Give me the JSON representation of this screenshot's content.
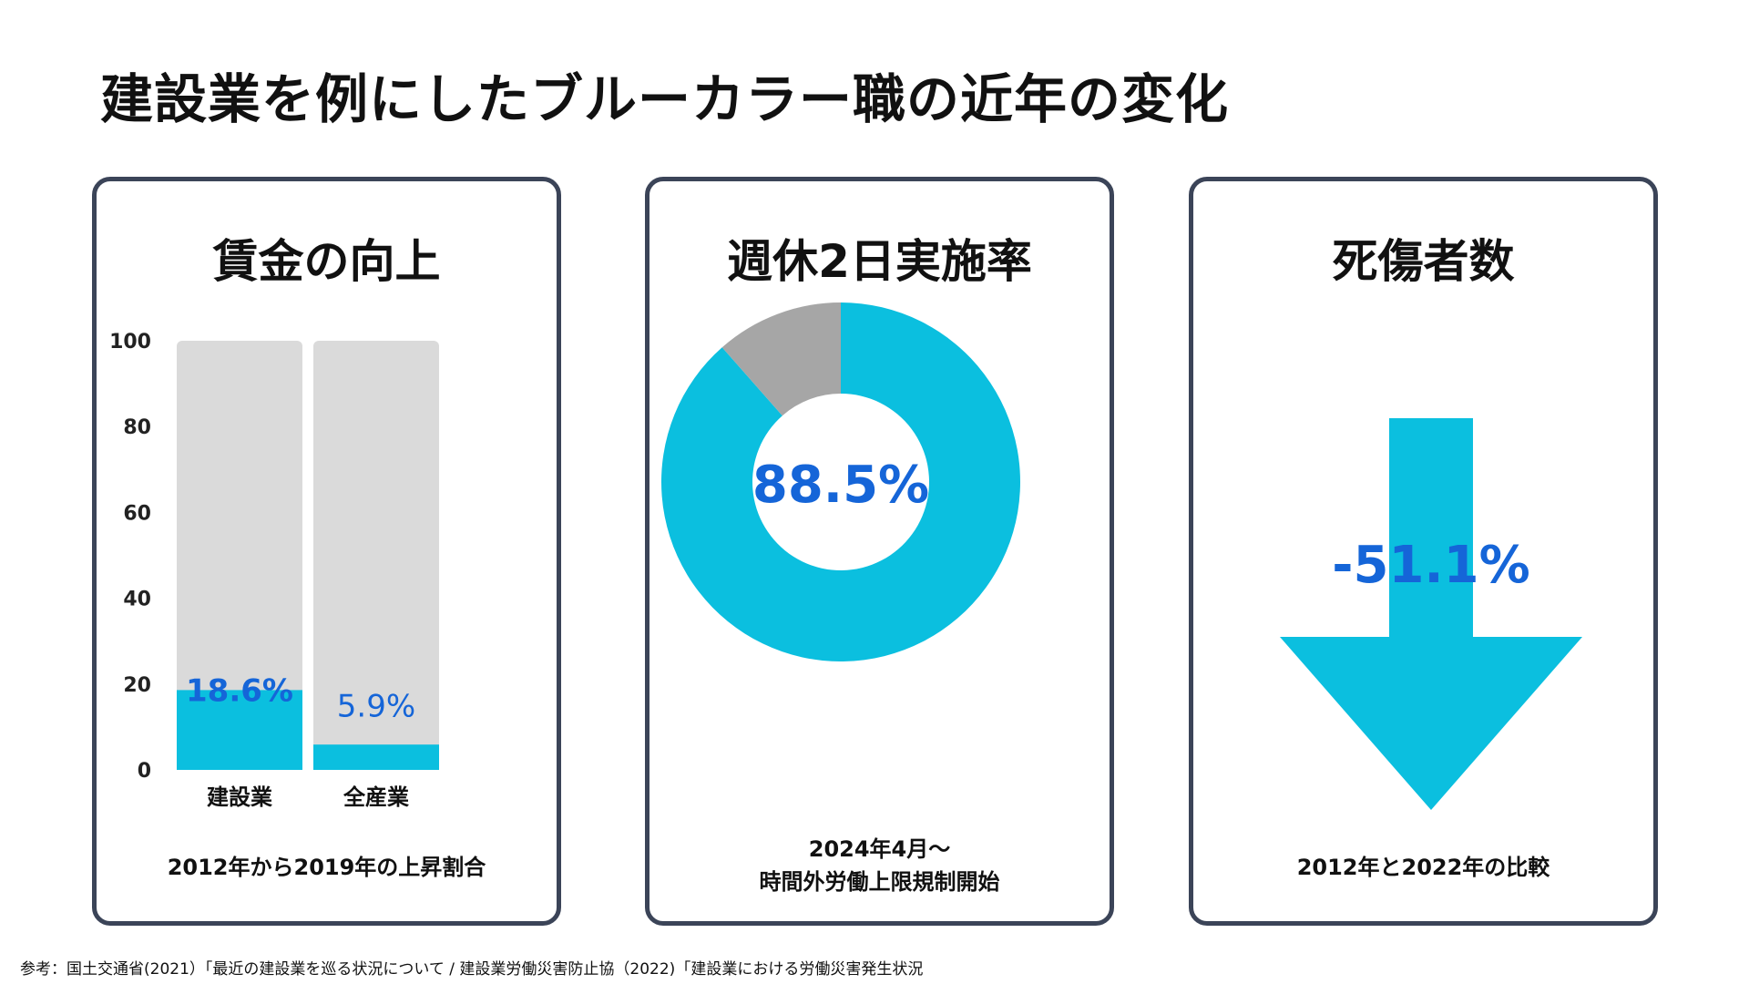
{
  "page": {
    "title": "建設業を例にしたブルーカラー職の近年の変化",
    "footnote": "参考：国土交通省(2021）「最近の建設業を巡る状況について / 建設業労働災害防止協（2022)「建設業における労働災害発生状況"
  },
  "colors": {
    "accent": "#0bbfdf",
    "value_text": "#1565d8",
    "bar_background": "#dadada",
    "donut_rest": "#a6a6a6",
    "border": "#3b4458"
  },
  "cards": {
    "wage": {
      "title": "賃金の向上",
      "caption": "2012年から2019年の上昇割合"
    },
    "holiday": {
      "title": "週休2日実施率",
      "caption_line1": "2024年4月〜",
      "caption_line2": "時間外労働上限規制開始"
    },
    "casualty": {
      "title": "死傷者数",
      "value_label": "-51.1%",
      "caption": "2012年と2022年の比較"
    }
  },
  "chart_data": [
    {
      "type": "bar",
      "title": "賃金の向上",
      "categories": [
        "建設業",
        "全産業"
      ],
      "values": [
        18.6,
        5.9
      ],
      "value_labels": [
        "18.6%",
        "5.9%"
      ],
      "ylim": [
        0,
        100
      ],
      "yticks": [
        0,
        20,
        40,
        60,
        80,
        100
      ],
      "background_max": 100,
      "xlabel": "2012年から2019年の上昇割合",
      "ylabel": ""
    },
    {
      "type": "pie",
      "title": "週休2日実施率",
      "donut": true,
      "values": [
        88.5,
        11.5
      ],
      "center_label": "88.5%"
    },
    {
      "type": "other",
      "title": "死傷者数",
      "shape": "down-arrow",
      "value": -51.1,
      "label": "-51.1%"
    }
  ]
}
